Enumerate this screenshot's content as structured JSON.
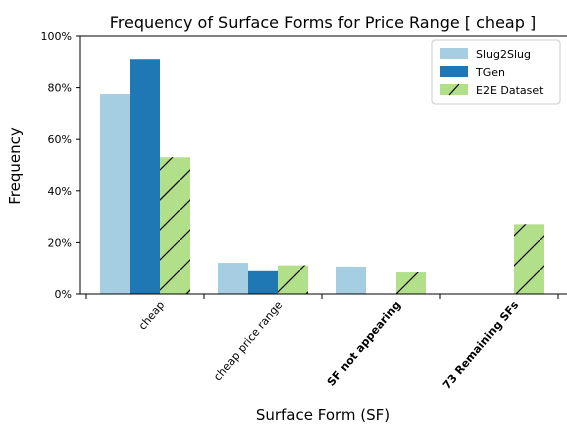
{
  "chart_data": {
    "type": "bar",
    "title": "Frequency of Surface Forms for Price Range [ cheap ]",
    "xlabel": "Surface Form (SF)",
    "ylabel": "Frequency",
    "categories": [
      "cheap",
      "cheap price range",
      "SF not appearing",
      "73 Remaining SFs"
    ],
    "bold_categories": [
      "SF not appearing",
      "73 Remaining SFs"
    ],
    "ylim": [
      0,
      100
    ],
    "yticks": [
      "0%",
      "20%",
      "40%",
      "60%",
      "80%",
      "100%"
    ],
    "series": [
      {
        "name": "Slug2Slug",
        "color": "#a6cee3",
        "hatch": false,
        "values": [
          77.5,
          12,
          10.5,
          0
        ]
      },
      {
        "name": "TGen",
        "color": "#1f78b4",
        "hatch": false,
        "values": [
          91,
          9,
          0,
          0
        ]
      },
      {
        "name": "E2E Dataset",
        "color": "#b2df8a",
        "hatch": true,
        "values": [
          53,
          11,
          8.5,
          27
        ]
      }
    ],
    "legend_position": "top-right",
    "grid": false
  }
}
